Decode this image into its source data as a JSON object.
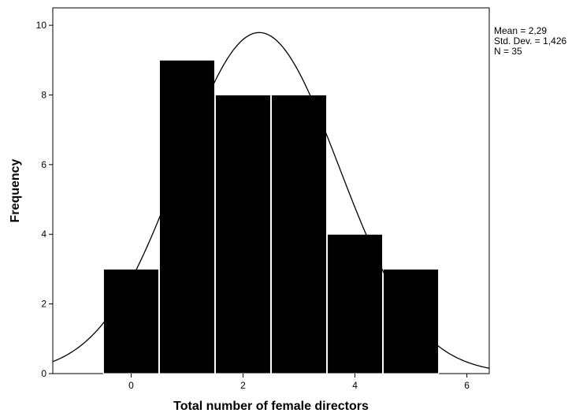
{
  "chart_data": {
    "type": "bar",
    "subtype": "histogram",
    "title": "",
    "xlabel": "Total number of female directors",
    "ylabel": "Frequency",
    "bins": [
      {
        "center": 0,
        "start": -0.5,
        "end": 0.5,
        "value": 3
      },
      {
        "center": 1,
        "start": 0.5,
        "end": 1.5,
        "value": 9
      },
      {
        "center": 2,
        "start": 1.5,
        "end": 2.5,
        "value": 8
      },
      {
        "center": 3,
        "start": 2.5,
        "end": 3.5,
        "value": 8
      },
      {
        "center": 4,
        "start": 3.5,
        "end": 4.5,
        "value": 4
      },
      {
        "center": 5,
        "start": 4.5,
        "end": 5.5,
        "value": 3
      }
    ],
    "xlim": [
      -1.4,
      6.4
    ],
    "ylim": [
      0,
      10.5
    ],
    "xticks": [
      0,
      2,
      4,
      6
    ],
    "yticks": [
      0,
      2,
      4,
      6,
      8,
      10
    ],
    "grid": false,
    "bar_color": "#000000",
    "curve": {
      "type": "normal",
      "mean": 2.29,
      "std": 1.426,
      "n": 35,
      "bin_width": 1
    },
    "stats": {
      "mean_label": "Mean = 2,29",
      "std_label": "Std. Dev. = 1,426",
      "n_label": "N = 35"
    }
  }
}
